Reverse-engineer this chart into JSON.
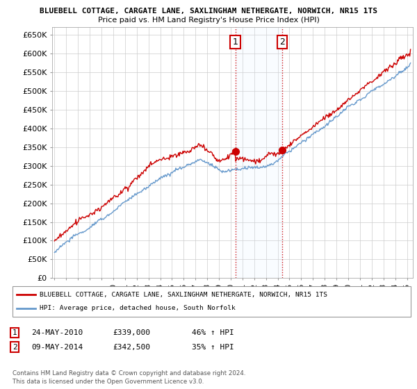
{
  "title1": "BLUEBELL COTTAGE, CARGATE LANE, SAXLINGHAM NETHERGATE, NORWICH, NR15 1TS",
  "title2": "Price paid vs. HM Land Registry's House Price Index (HPI)",
  "ylabel_ticks": [
    "£0",
    "£50K",
    "£100K",
    "£150K",
    "£200K",
    "£250K",
    "£300K",
    "£350K",
    "£400K",
    "£450K",
    "£500K",
    "£550K",
    "£600K",
    "£650K"
  ],
  "ytick_values": [
    0,
    50000,
    100000,
    150000,
    200000,
    250000,
    300000,
    350000,
    400000,
    450000,
    500000,
    550000,
    600000,
    650000
  ],
  "ylim": [
    0,
    670000
  ],
  "xlim_start": 1994.8,
  "xlim_end": 2025.5,
  "xtick_years": [
    1995,
    1996,
    1997,
    1998,
    1999,
    2000,
    2001,
    2002,
    2003,
    2004,
    2005,
    2006,
    2007,
    2008,
    2009,
    2010,
    2011,
    2012,
    2013,
    2014,
    2015,
    2016,
    2017,
    2018,
    2019,
    2020,
    2021,
    2022,
    2023,
    2024,
    2025
  ],
  "hpi_color": "#6699cc",
  "price_color": "#cc0000",
  "transaction1_x": 2010.39,
  "transaction1_y": 339000,
  "transaction2_x": 2014.36,
  "transaction2_y": 342500,
  "transaction1_date": "24-MAY-2010",
  "transaction1_price": "£339,000",
  "transaction1_hpi": "46% ↑ HPI",
  "transaction2_date": "09-MAY-2014",
  "transaction2_price": "£342,500",
  "transaction2_hpi": "35% ↑ HPI",
  "legend_label1": "BLUEBELL COTTAGE, CARGATE LANE, SAXLINGHAM NETHERGATE, NORWICH, NR15 1TS",
  "legend_label2": "HPI: Average price, detached house, South Norfolk",
  "footer1": "Contains HM Land Registry data © Crown copyright and database right 2024.",
  "footer2": "This data is licensed under the Open Government Licence v3.0.",
  "bg_color": "#ffffff",
  "grid_color": "#cccccc",
  "span_color": "#ddeeff"
}
